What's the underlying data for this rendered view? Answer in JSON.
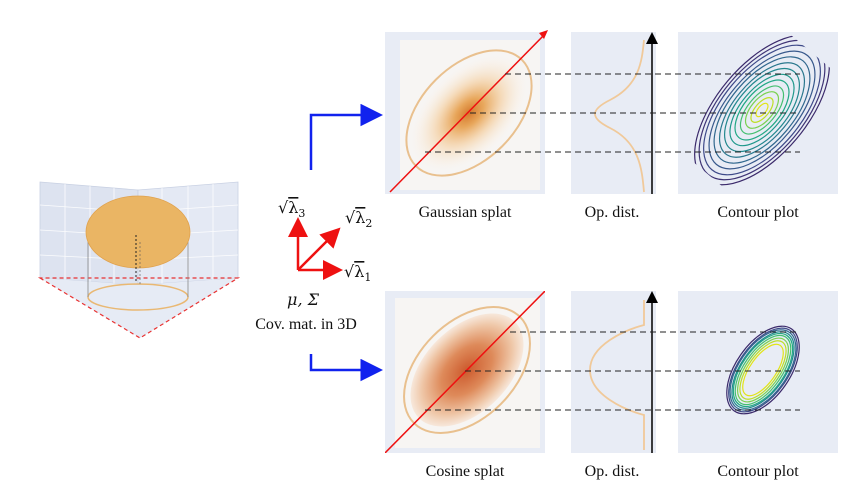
{
  "captions": {
    "top_panel_1": "Gaussian splat",
    "top_panel_2": "Op. dist.",
    "top_panel_3": "Contour plot",
    "bottom_panel_1": "Cosine splat",
    "bottom_panel_2": "Op. dist.",
    "bottom_panel_3": "Contour plot"
  },
  "axes_labels": {
    "lambda1": "λ",
    "lambda1_sub": "1",
    "lambda2": "λ",
    "lambda2_sub": "2",
    "lambda3": "λ",
    "lambda3_sub": "3",
    "sqrt": "√"
  },
  "params": {
    "mu_sigma": "μ, Σ",
    "covariance": "Cov. mat. in 3D"
  },
  "colors": {
    "panel_bg": "#e8ecf5",
    "gaussian_center": "#e69a48",
    "cosine_center": "#d2683c",
    "ellipse_stroke": "#e9c08e",
    "arrow_blue": "#1122ee",
    "arrow_red": "#ee1111",
    "contour_outer": "#3b2a6b",
    "contour_inner": "#d8e84a"
  }
}
